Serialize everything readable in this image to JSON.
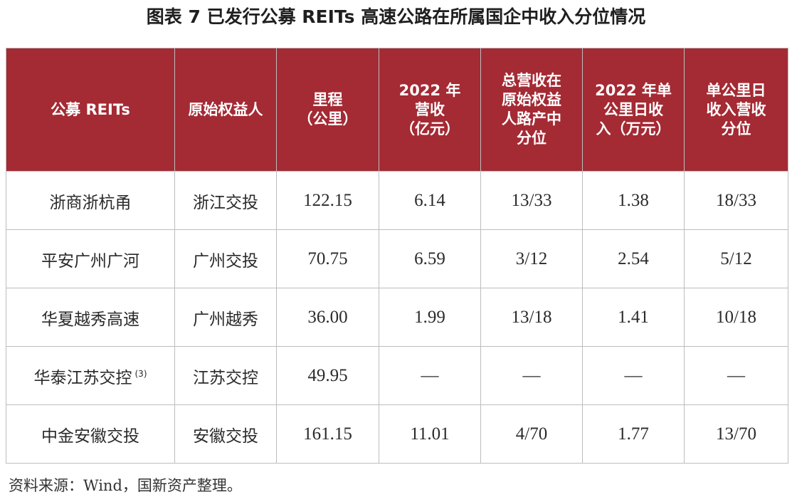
{
  "title": "图表 7  已发行公募 REITs 高速公路在所属国企中收入分位情况",
  "table": {
    "headers": [
      [
        "公募 REITs"
      ],
      [
        "原始权益人"
      ],
      [
        "里程",
        "（公里）"
      ],
      [
        "2022 年",
        "营收",
        "（亿元）"
      ],
      [
        "总营收在",
        "原始权益",
        "人路产中",
        "分位"
      ],
      [
        "2022 年单",
        "公里日收",
        "入（万元）"
      ],
      [
        "单公里日",
        "收入营收",
        "分位"
      ]
    ],
    "rows": [
      {
        "name": "浙商浙杭甬",
        "note": "",
        "owner": "浙江交投",
        "mileage": "122.15",
        "revenue": "6.14",
        "revenue_rank": "13/33",
        "daily": "1.38",
        "daily_rank": "18/33"
      },
      {
        "name": "平安广州广河",
        "note": "",
        "owner": "广州交投",
        "mileage": "70.75",
        "revenue": "6.59",
        "revenue_rank": "3/12",
        "daily": "2.54",
        "daily_rank": "5/12"
      },
      {
        "name": "华夏越秀高速",
        "note": "",
        "owner": "广州越秀",
        "mileage": "36.00",
        "revenue": "1.99",
        "revenue_rank": "13/18",
        "daily": "1.41",
        "daily_rank": "10/18"
      },
      {
        "name": "华泰江苏交控",
        "note": "(3)",
        "owner": "江苏交控",
        "mileage": "49.95",
        "revenue": "—",
        "revenue_rank": "—",
        "daily": "—",
        "daily_rank": "—"
      },
      {
        "name": "中金安徽交投",
        "note": "",
        "owner": "安徽交投",
        "mileage": "161.15",
        "revenue": "11.01",
        "revenue_rank": "4/70",
        "daily": "1.77",
        "daily_rank": "13/70"
      }
    ]
  },
  "source": "资料来源：Wind，国新资产整理。",
  "colors": {
    "header_bg": "#a42a34",
    "header_text": "#ffffff"
  }
}
